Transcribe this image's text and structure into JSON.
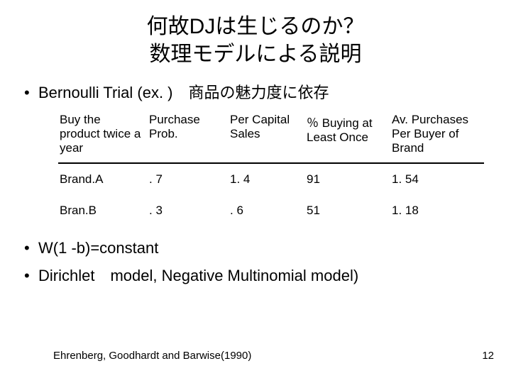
{
  "title": {
    "line1": "何故DJは生じるのか？",
    "line2": "数理モデルによる説明"
  },
  "bullets": {
    "b1": "Bernoulli Trial (ex. )　商品の魅力度に依存",
    "b2": "W(1 -b)=constant",
    "b3": "Dirichlet　model, Negative Multinomial model)"
  },
  "table": {
    "headers": {
      "c0": "Buy the product twice a year",
      "c1": "Purchase Prob.",
      "c2": "Per Capital Sales",
      "c3": "％ Buying at Least Once",
      "c4": "Av. Purchases Per Buyer of Brand"
    },
    "rows": [
      {
        "c0": "Brand.A",
        "c1": ". 7",
        "c2": "1. 4",
        "c3": "91",
        "c4": "1. 54"
      },
      {
        "c0": "Bran.B",
        "c1": ". 3",
        "c2": ". 6",
        "c3": "51",
        "c4": "1. 18"
      }
    ],
    "header_fontsize": 17,
    "body_fontsize": 17,
    "border_color": "#000000",
    "col_widths_pct": [
      21,
      19,
      18,
      20,
      22
    ]
  },
  "footnote": "Ehrenberg, Goodhardt and Barwise(1990)",
  "page_number": "12",
  "style": {
    "background_color": "#ffffff",
    "text_color": "#000000",
    "title_fontsize": 30,
    "bullet_fontsize": 22,
    "footnote_fontsize": 15
  }
}
